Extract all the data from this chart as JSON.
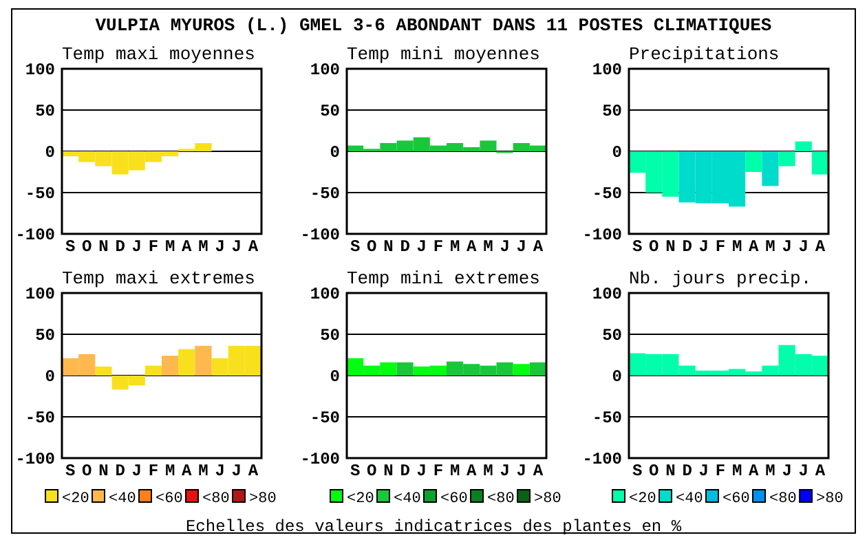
{
  "chart_data": [
    {
      "type": "bar",
      "title": "Temp maxi moyennes",
      "annotations": [
        "VULPIA MYUROS (L.) GMEL 3-6 ABONDANT DANS  11 POSTES CLIMATIQUES"
      ],
      "categories": [
        "S",
        "O",
        "N",
        "D",
        "J",
        "F",
        "M",
        "A",
        "M",
        "J",
        "J",
        "A"
      ],
      "values": [
        -6,
        -13,
        -18,
        -28,
        -23,
        -13,
        -6,
        3,
        10,
        0,
        0,
        0
      ],
      "colors": [
        "#f8e11c",
        "#f8e11c",
        "#f8e11c",
        "#f8e11c",
        "#f8e11c",
        "#f8e11c",
        "#f8e11c",
        "#f8e11c",
        "#f8e11c",
        "#f8e11c",
        "#f8e11c",
        "#f8e11c"
      ],
      "ylim": [
        -100,
        100
      ],
      "yticks": [
        -100,
        -50,
        0,
        50,
        100
      ],
      "grid": "y"
    },
    {
      "type": "bar",
      "title": "Temp mini moyennes",
      "categories": [
        "S",
        "O",
        "N",
        "D",
        "J",
        "F",
        "M",
        "A",
        "M",
        "J",
        "J",
        "A"
      ],
      "values": [
        7,
        3,
        10,
        13,
        17,
        7,
        10,
        5,
        13,
        -2,
        10,
        7
      ],
      "colors": [
        "#19c83a",
        "#19c83a",
        "#19c83a",
        "#19c83a",
        "#19c83a",
        "#19c83a",
        "#19c83a",
        "#19c83a",
        "#19c83a",
        "#19c83a",
        "#19c83a",
        "#19c83a"
      ],
      "ylim": [
        -100,
        100
      ],
      "yticks": [
        -100,
        -50,
        0,
        50,
        100
      ],
      "grid": "y"
    },
    {
      "type": "bar",
      "title": "Precipitations",
      "categories": [
        "S",
        "O",
        "N",
        "D",
        "J",
        "F",
        "M",
        "A",
        "M",
        "J",
        "J",
        "A"
      ],
      "values": [
        -26,
        -50,
        -55,
        -62,
        -63,
        -63,
        -67,
        -25,
        -42,
        -18,
        12,
        -28
      ],
      "colors": [
        "#00ffaa",
        "#00ffaa",
        "#00ffaa",
        "#00dccc",
        "#00dccc",
        "#00dccc",
        "#00dccc",
        "#00ffaa",
        "#00dccc",
        "#00ffaa",
        "#00ffaa",
        "#00ffaa"
      ],
      "ylim": [
        -100,
        100
      ],
      "yticks": [
        -100,
        -50,
        0,
        50,
        100
      ],
      "grid": "y"
    },
    {
      "type": "bar",
      "title": "Temp maxi extremes",
      "categories": [
        "S",
        "O",
        "N",
        "D",
        "J",
        "F",
        "M",
        "A",
        "M",
        "J",
        "J",
        "A"
      ],
      "series": [
        {
          "name": "<20",
          "color": "#f8e11c",
          "values": [
            null,
            null,
            11,
            -17,
            -12,
            12,
            null,
            32,
            null,
            21,
            36,
            36
          ]
        },
        {
          "name": "<40",
          "color": "#ffb84d",
          "values": [
            21,
            26,
            null,
            null,
            null,
            null,
            24,
            null,
            36,
            null,
            null,
            null
          ]
        },
        {
          "name": "<60",
          "color": "#ff7f1e",
          "values": [
            null,
            null,
            null,
            null,
            null,
            null,
            null,
            null,
            null,
            null,
            null,
            null
          ]
        },
        {
          "name": "<80",
          "color": "#e81010",
          "values": [
            null,
            null,
            null,
            null,
            null,
            null,
            null,
            null,
            null,
            null,
            null,
            null
          ]
        },
        {
          "name": ">80",
          "color": "#b01818",
          "values": [
            null,
            null,
            null,
            null,
            null,
            null,
            null,
            null,
            null,
            null,
            null,
            null
          ]
        }
      ],
      "ylim": [
        -100,
        100
      ],
      "yticks": [
        -100,
        -50,
        0,
        50,
        100
      ],
      "grid": "y",
      "legend": "bottom",
      "stacked": true
    },
    {
      "type": "bar",
      "title": "Temp mini extremes",
      "annotations": [
        "Echelles des valeurs indicatrices des plantes en %"
      ],
      "categories": [
        "S",
        "O",
        "N",
        "D",
        "J",
        "F",
        "M",
        "A",
        "M",
        "J",
        "J",
        "A"
      ],
      "series": [
        {
          "name": "<20",
          "color": "#00ff10",
          "values": [
            21,
            12,
            16,
            null,
            11,
            12,
            null,
            null,
            null,
            null,
            14,
            null
          ]
        },
        {
          "name": "<40",
          "color": "#19c83a",
          "values": [
            null,
            null,
            null,
            16,
            null,
            null,
            17,
            14,
            12,
            16,
            null,
            16
          ]
        },
        {
          "name": "<60",
          "color": "#10a030",
          "values": [
            null,
            null,
            null,
            null,
            null,
            null,
            null,
            null,
            null,
            null,
            null,
            null
          ]
        },
        {
          "name": "<80",
          "color": "#0a8020",
          "values": [
            null,
            null,
            null,
            null,
            null,
            null,
            null,
            null,
            null,
            null,
            null,
            null
          ]
        },
        {
          "name": ">80",
          "color": "#0a6018",
          "values": [
            null,
            null,
            null,
            null,
            null,
            null,
            null,
            null,
            null,
            null,
            null,
            null
          ]
        }
      ],
      "ylim": [
        -100,
        100
      ],
      "yticks": [
        -100,
        -50,
        0,
        50,
        100
      ],
      "grid": "y",
      "legend": "bottom",
      "stacked": true
    },
    {
      "type": "bar",
      "title": "Nb. jours precip.",
      "categories": [
        "S",
        "O",
        "N",
        "D",
        "J",
        "F",
        "M",
        "A",
        "M",
        "J",
        "J",
        "A"
      ],
      "series": [
        {
          "name": "<20",
          "color": "#00ffaa",
          "values": [
            27,
            26,
            26,
            12,
            6,
            6,
            8,
            5,
            12,
            37,
            26,
            24
          ]
        },
        {
          "name": "<40",
          "color": "#00dccc",
          "values": [
            null,
            null,
            null,
            null,
            null,
            null,
            null,
            null,
            null,
            null,
            null,
            null
          ]
        },
        {
          "name": "<60",
          "color": "#00bce0",
          "values": [
            null,
            null,
            null,
            null,
            null,
            null,
            null,
            null,
            null,
            null,
            null,
            null
          ]
        },
        {
          "name": "<80",
          "color": "#0090f0",
          "values": [
            null,
            null,
            null,
            null,
            null,
            null,
            null,
            null,
            null,
            null,
            null,
            null
          ]
        },
        {
          "name": ">80",
          "color": "#0000ff",
          "values": [
            null,
            null,
            null,
            null,
            null,
            null,
            null,
            null,
            null,
            null,
            null,
            null
          ]
        }
      ],
      "ylim": [
        -100,
        100
      ],
      "yticks": [
        -100,
        -50,
        0,
        50,
        100
      ],
      "grid": "y",
      "legend": "bottom",
      "stacked": true
    }
  ]
}
